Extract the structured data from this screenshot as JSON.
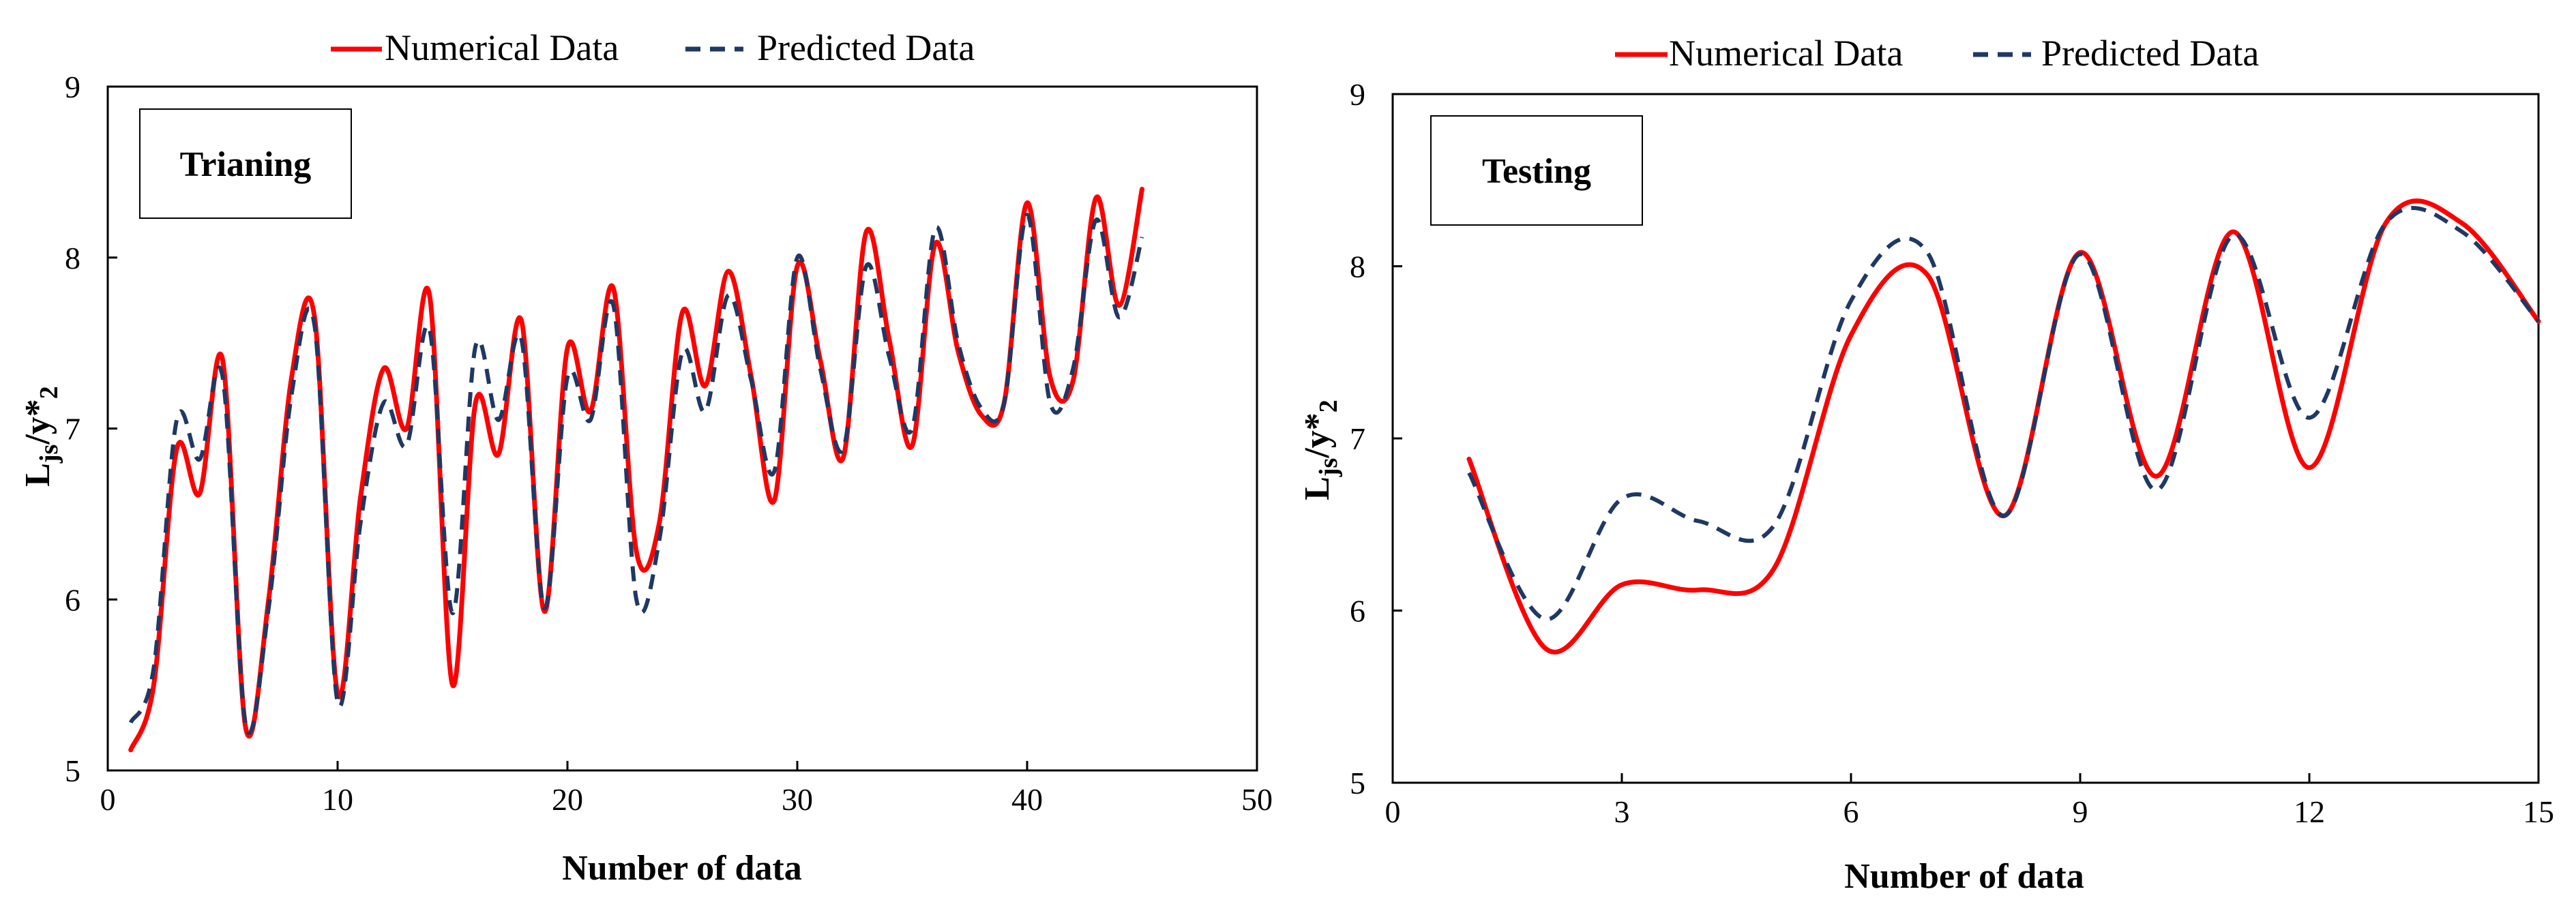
{
  "colors": {
    "numerical": "#ff0000",
    "predicted": "#1f3864",
    "axis": "#000000"
  },
  "chart_data": [
    {
      "type": "line",
      "title": "",
      "panel_label": "Trianing",
      "xlabel": "Number of data",
      "ylabel_main": "L",
      "ylabel_sub": "js",
      "ylabel_rest": "/y*",
      "ylabel_sub2": "2",
      "xlim": [
        0,
        50
      ],
      "ylim": [
        5,
        9
      ],
      "xticks": [
        0,
        10,
        20,
        30,
        40,
        50
      ],
      "yticks": [
        5,
        6,
        7,
        8,
        9
      ],
      "legend": [
        "Numerical  Data",
        "Predicted Data"
      ],
      "series": [
        {
          "name": "Numerical  Data",
          "style": "solid",
          "x": [
            1,
            2,
            3,
            4,
            5,
            6,
            7,
            8,
            9,
            10,
            11,
            12,
            13,
            14,
            15,
            16,
            17,
            18,
            19,
            20,
            21,
            22,
            23,
            24,
            25,
            26,
            27,
            28,
            29,
            30,
            31,
            32,
            33,
            34,
            35,
            36,
            37,
            38,
            39,
            40,
            41,
            42,
            43,
            44,
            45
          ],
          "values": [
            5.12,
            5.5,
            6.88,
            6.62,
            7.4,
            5.25,
            6.0,
            7.3,
            7.65,
            5.45,
            6.6,
            7.35,
            7.0,
            7.78,
            5.5,
            7.15,
            6.85,
            7.63,
            5.93,
            7.47,
            7.1,
            7.82,
            6.28,
            6.45,
            7.68,
            7.25,
            7.92,
            7.3,
            6.58,
            7.95,
            7.4,
            6.83,
            8.15,
            7.52,
            6.9,
            8.08,
            7.45,
            7.08,
            7.15,
            8.32,
            7.3,
            7.28,
            8.35,
            7.72,
            8.4
          ]
        },
        {
          "name": "Predicted Data",
          "style": "dashed",
          "x": [
            1,
            2,
            3,
            4,
            5,
            6,
            7,
            8,
            9,
            10,
            11,
            12,
            13,
            14,
            15,
            16,
            17,
            18,
            19,
            20,
            21,
            22,
            23,
            24,
            25,
            26,
            27,
            28,
            29,
            30,
            31,
            32,
            33,
            34,
            35,
            36,
            37,
            38,
            39,
            40,
            41,
            42,
            43,
            44,
            45
          ],
          "values": [
            5.28,
            5.6,
            7.05,
            6.82,
            7.3,
            5.27,
            5.95,
            7.2,
            7.6,
            5.4,
            6.45,
            7.15,
            6.9,
            7.58,
            5.92,
            7.48,
            7.05,
            7.52,
            5.95,
            7.3,
            7.05,
            7.72,
            6.0,
            6.35,
            7.45,
            7.1,
            7.78,
            7.28,
            6.75,
            8.0,
            7.35,
            6.88,
            7.95,
            7.42,
            7.0,
            8.17,
            7.5,
            7.12,
            7.15,
            8.25,
            7.15,
            7.35,
            8.22,
            7.65,
            8.12
          ]
        }
      ]
    },
    {
      "type": "line",
      "title": "",
      "panel_label": "Testing",
      "xlabel": "Number of data",
      "ylabel_main": "L",
      "ylabel_sub": "js",
      "ylabel_rest": "/y*",
      "ylabel_sub2": "2",
      "xlim": [
        0,
        15
      ],
      "ylim": [
        5,
        9
      ],
      "xticks": [
        0,
        3,
        6,
        9,
        12,
        15
      ],
      "yticks": [
        5,
        6,
        7,
        8,
        9
      ],
      "legend": [
        "Numerical  Data",
        "Predicted Data"
      ],
      "series": [
        {
          "name": "Numerical  Data",
          "style": "solid",
          "x": [
            1,
            2,
            3,
            4,
            5,
            6,
            7,
            8,
            9,
            10,
            11,
            12,
            13,
            14,
            15
          ],
          "values": [
            6.88,
            5.78,
            6.15,
            6.12,
            6.25,
            7.6,
            7.95,
            6.55,
            8.08,
            6.78,
            8.2,
            6.83,
            8.25,
            8.25,
            7.68
          ]
        },
        {
          "name": "Predicted Data",
          "style": "dashed",
          "x": [
            1,
            2,
            3,
            4,
            5,
            6,
            7,
            8,
            9,
            10,
            11,
            12,
            13,
            14,
            15
          ],
          "values": [
            6.8,
            5.95,
            6.65,
            6.52,
            6.5,
            7.8,
            8.08,
            6.55,
            8.07,
            6.7,
            8.18,
            7.12,
            8.25,
            8.2,
            7.68
          ]
        }
      ]
    }
  ]
}
